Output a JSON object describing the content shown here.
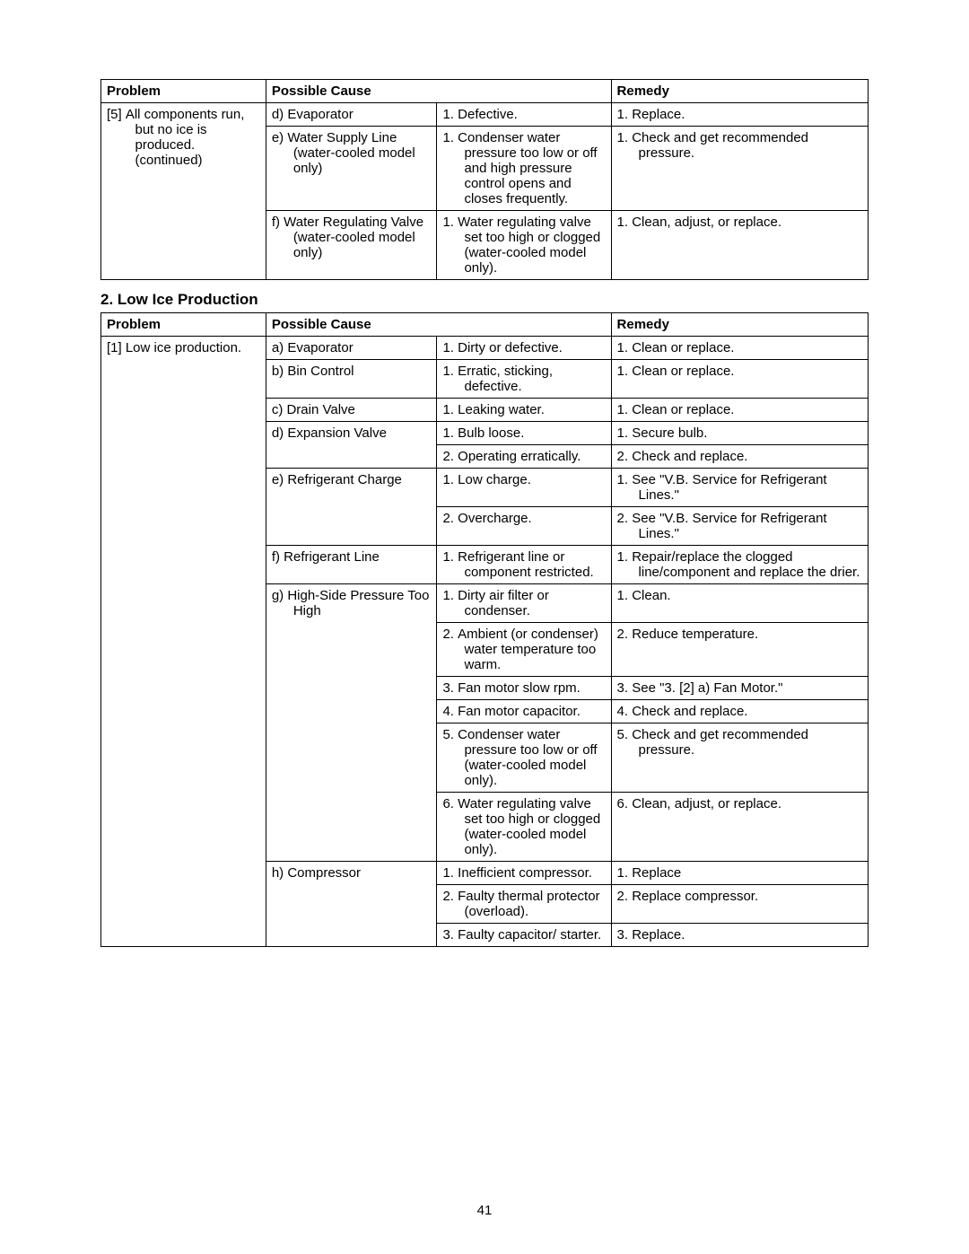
{
  "table1": {
    "headers": {
      "problem": "Problem",
      "cause": "Possible Cause",
      "remedy": "Remedy"
    },
    "problem": "[5] All components run, but no ice is produced. (continued)",
    "rows": [
      {
        "cause": "d) Evaporator",
        "sym": "1. Defective.",
        "rem": "1. Replace."
      },
      {
        "cause": "e) Water Supply Line (water-cooled model only)",
        "sym": "1. Condenser water pressure too low or off and high pressure control opens and closes frequently.",
        "rem": "1. Check and get recommended pressure."
      },
      {
        "cause": "f) Water Regulating Valve (water-cooled model only)",
        "sym": "1. Water regulating valve set too high or clogged (water-cooled model only).",
        "rem": "1. Clean, adjust, or replace."
      }
    ]
  },
  "sectionTitle": "2. Low Ice Production",
  "table2": {
    "headers": {
      "problem": "Problem",
      "cause": "Possible Cause",
      "remedy": "Remedy"
    },
    "problem": "[1] Low ice production.",
    "groups": [
      {
        "cause": "a) Evaporator",
        "items": [
          {
            "sym": "1. Dirty or defective.",
            "rem": "1. Clean or replace."
          }
        ]
      },
      {
        "cause": "b) Bin Control",
        "items": [
          {
            "sym": "1. Erratic, sticking, defective.",
            "rem": "1. Clean or replace."
          }
        ]
      },
      {
        "cause": "c) Drain Valve",
        "items": [
          {
            "sym": "1. Leaking water.",
            "rem": "1. Clean or replace."
          }
        ]
      },
      {
        "cause": "d) Expansion Valve",
        "items": [
          {
            "sym": "1. Bulb loose.",
            "rem": "1. Secure bulb."
          },
          {
            "sym": "2. Operating erratically.",
            "rem": "2. Check and replace."
          }
        ]
      },
      {
        "cause": "e) Refrigerant Charge",
        "items": [
          {
            "sym": "1. Low charge.",
            "rem": "1. See \"V.B. Service for Refrigerant Lines.\""
          },
          {
            "sym": "2. Overcharge.",
            "rem": "2. See \"V.B. Service for Refrigerant Lines.\""
          }
        ]
      },
      {
        "cause": "f) Refrigerant Line",
        "items": [
          {
            "sym": "1. Refrigerant line or component restricted.",
            "rem": "1. Repair/replace the clogged line/component and replace the drier."
          }
        ]
      },
      {
        "cause": "g) High-Side Pressure Too High",
        "items": [
          {
            "sym": "1. Dirty air filter or condenser.",
            "rem": "1. Clean."
          },
          {
            "sym": "2. Ambient (or condenser) water temperature too warm.",
            "rem": "2. Reduce temperature."
          },
          {
            "sym": "3. Fan motor slow rpm.",
            "rem": "3. See \"3. [2] a) Fan Motor.\""
          },
          {
            "sym": "4. Fan motor capacitor.",
            "rem": "4. Check and replace."
          },
          {
            "sym": "5. Condenser water pressure too low or off (water-cooled model only).",
            "rem": "5. Check and get recommended pressure."
          },
          {
            "sym": "6. Water regulating valve set too high or clogged (water-cooled model only).",
            "rem": "6. Clean, adjust, or replace."
          }
        ]
      },
      {
        "cause": "h) Compressor",
        "items": [
          {
            "sym": "1. Inefficient compressor.",
            "rem": "1. Replace"
          },
          {
            "sym": "2. Faulty thermal protector (overload).",
            "rem": "2. Replace compressor."
          },
          {
            "sym": "3. Faulty capacitor/ starter.",
            "rem": "3. Replace."
          }
        ]
      }
    ]
  },
  "pageNumber": "41",
  "colWidths": {
    "c1": "21.5%",
    "c2": "22.3%",
    "c3": "22.7%",
    "c4": "33.5%"
  }
}
